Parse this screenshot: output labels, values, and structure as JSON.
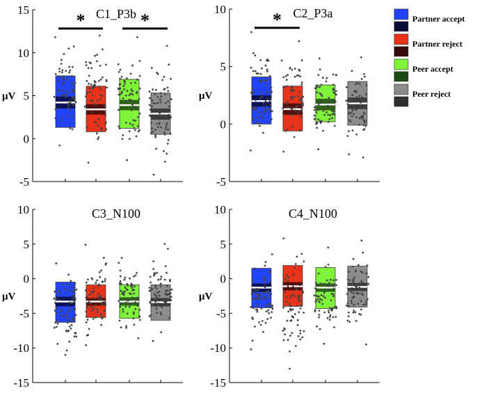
{
  "legend": {
    "entries": [
      {
        "label": "Partner accept",
        "box_color": "#2244ff",
        "ci_color": "#0b0b3a"
      },
      {
        "label": "Partner reject",
        "box_color": "#e8321a",
        "ci_color": "#3a0a0a"
      },
      {
        "label": "Peer accept",
        "box_color": "#7ff23a",
        "ci_color": "#1d4a12"
      },
      {
        "label": "Peer reject",
        "box_color": "#8c8c8c",
        "ci_color": "#2e2e2e"
      }
    ]
  },
  "chart_data": [
    {
      "type": "box",
      "title": "C1_P3b",
      "ylabel": "μV",
      "ylim": [
        -5,
        15
      ],
      "yticks": [
        "-5",
        "0",
        "5",
        "10",
        "15"
      ],
      "categories": [
        "Partner accept",
        "Partner reject",
        "Peer accept",
        "Peer reject"
      ],
      "boxes": [
        {
          "low": 1.3,
          "high": 7.3,
          "mean": 4.2,
          "ci_low": 3.5,
          "ci_high": 4.9
        },
        {
          "low": 0.8,
          "high": 6.1,
          "mean": 3.4,
          "ci_low": 2.8,
          "ci_high": 4.0
        },
        {
          "low": 1.2,
          "high": 6.9,
          "mean": 3.9,
          "ci_low": 3.3,
          "ci_high": 4.5
        },
        {
          "low": 0.5,
          "high": 5.3,
          "mean": 2.9,
          "ci_low": 2.2,
          "ci_high": 3.5
        }
      ],
      "points_range": [
        [
          -0.8,
          11.8
        ],
        [
          -2.8,
          12.0
        ],
        [
          -2.5,
          11.8
        ],
        [
          -4.2,
          10.8
        ]
      ],
      "significance": [
        {
          "from": 0,
          "to": 1,
          "label": "*"
        },
        {
          "from": 2,
          "to": 3,
          "label": "*"
        }
      ]
    },
    {
      "type": "box",
      "title": "C2_P3a",
      "ylabel": "μV",
      "ylim": [
        -5,
        10
      ],
      "yticks": [
        "-5",
        "0",
        "5",
        "10"
      ],
      "categories": [
        "Partner accept",
        "Partner reject",
        "Peer accept",
        "Peer reject"
      ],
      "boxes": [
        {
          "low": 0.0,
          "high": 4.1,
          "mean": 2.0,
          "ci_low": 1.5,
          "ci_high": 2.5
        },
        {
          "low": -0.6,
          "high": 3.3,
          "mean": 1.3,
          "ci_low": 0.8,
          "ci_high": 1.8
        },
        {
          "low": 0.2,
          "high": 3.4,
          "mean": 1.7,
          "ci_low": 1.2,
          "ci_high": 2.2
        },
        {
          "low": -0.1,
          "high": 3.7,
          "mean": 1.8,
          "ci_low": 1.3,
          "ci_high": 2.3
        }
      ],
      "points_range": [
        [
          -2.3,
          8.0
        ],
        [
          -2.4,
          7.2
        ],
        [
          -2.2,
          5.7
        ],
        [
          -2.9,
          5.8
        ]
      ],
      "significance": [
        {
          "from": 0,
          "to": 1,
          "label": "*"
        }
      ]
    },
    {
      "type": "box",
      "title": "C3_N100",
      "ylabel": "μV",
      "ylim": [
        -15,
        10
      ],
      "yticks": [
        "-15",
        "-10",
        "-5",
        "0",
        "5",
        "10"
      ],
      "categories": [
        "Partner accept",
        "Partner reject",
        "Peer accept",
        "Peer reject"
      ],
      "boxes": [
        {
          "low": -6.3,
          "high": -0.5,
          "mean": -3.3,
          "ci_low": -4.0,
          "ci_high": -2.6
        },
        {
          "low": -5.6,
          "high": -0.9,
          "mean": -3.3,
          "ci_low": -3.9,
          "ci_high": -2.8
        },
        {
          "low": -5.7,
          "high": -0.9,
          "mean": -3.3,
          "ci_low": -3.9,
          "ci_high": -2.7
        },
        {
          "low": -6.0,
          "high": -0.9,
          "mean": -3.4,
          "ci_low": -4.0,
          "ci_high": -2.8
        }
      ],
      "points_range": [
        [
          -11.0,
          2.2
        ],
        [
          -9.6,
          4.9
        ],
        [
          -8.6,
          3.0
        ],
        [
          -9.0,
          5.0
        ]
      ],
      "significance": []
    },
    {
      "type": "box",
      "title": "C4_N100",
      "ylabel": "μV",
      "ylim": [
        -15,
        10
      ],
      "yticks": [
        "-15",
        "-10",
        "-5",
        "0",
        "5",
        "10"
      ],
      "categories": [
        "Partner accept",
        "Partner reject",
        "Peer accept",
        "Peer reject"
      ],
      "boxes": [
        {
          "low": -4.2,
          "high": 1.5,
          "mean": -1.3,
          "ci_low": -1.9,
          "ci_high": -0.7
        },
        {
          "low": -4.0,
          "high": 1.9,
          "mean": -1.1,
          "ci_low": -1.7,
          "ci_high": -0.5
        },
        {
          "low": -4.3,
          "high": 1.6,
          "mean": -1.3,
          "ci_low": -1.9,
          "ci_high": -0.7
        },
        {
          "low": -4.1,
          "high": 1.8,
          "mean": -1.2,
          "ci_low": -1.8,
          "ci_high": -0.6
        }
      ],
      "points_range": [
        [
          -10.2,
          3.5
        ],
        [
          -13.0,
          5.8
        ],
        [
          -9.4,
          4.5
        ],
        [
          -9.5,
          5.5
        ]
      ],
      "significance": []
    }
  ]
}
